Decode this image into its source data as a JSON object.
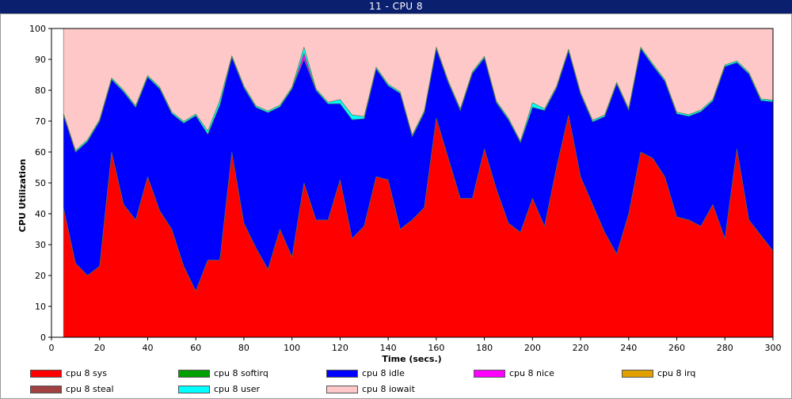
{
  "window": {
    "title": "11 - CPU 8"
  },
  "chart_data": {
    "type": "area",
    "stacked": true,
    "xlabel": "Time (secs.)",
    "ylabel": "CPU Utilization",
    "xlim": [
      0,
      300
    ],
    "ylim": [
      0,
      100
    ],
    "xticks": [
      0,
      20,
      40,
      60,
      80,
      100,
      120,
      140,
      160,
      180,
      200,
      220,
      240,
      260,
      280,
      300
    ],
    "yticks": [
      0,
      10,
      20,
      30,
      40,
      50,
      60,
      70,
      80,
      90,
      100
    ],
    "grid": false,
    "legend_position": "bottom",
    "x": [
      5,
      10,
      15,
      20,
      25,
      30,
      35,
      40,
      45,
      50,
      55,
      60,
      65,
      70,
      75,
      80,
      85,
      90,
      95,
      100,
      105,
      110,
      115,
      120,
      125,
      130,
      135,
      140,
      145,
      150,
      155,
      160,
      165,
      170,
      175,
      180,
      185,
      190,
      195,
      200,
      205,
      210,
      215,
      220,
      225,
      230,
      235,
      240,
      245,
      250,
      255,
      260,
      265,
      270,
      275,
      280,
      285,
      290,
      295,
      300
    ],
    "series": [
      {
        "name": "cpu 8 sys",
        "color": "#ff0000",
        "values": [
          42,
          24,
          20,
          23,
          60,
          43,
          38,
          52,
          41,
          35,
          23,
          15,
          25,
          25,
          60,
          37,
          29,
          22,
          35,
          26,
          50,
          38,
          38,
          51,
          32,
          36,
          52,
          51,
          35,
          38,
          42,
          71,
          58,
          45,
          45,
          61,
          48,
          37,
          34,
          45,
          36,
          55,
          72,
          52,
          43,
          34,
          27,
          40,
          60,
          58,
          52,
          39,
          38,
          36,
          43,
          32,
          61,
          38,
          33,
          28
        ]
      },
      {
        "name": "cpu 8 softirq",
        "color": "#00a000",
        "values": [
          0,
          0,
          0,
          0,
          0,
          0,
          0,
          0,
          0,
          0,
          0,
          0,
          0,
          0,
          0,
          0,
          0,
          0,
          0,
          0,
          0,
          0,
          0,
          0,
          0,
          0,
          0,
          0,
          0,
          0,
          0,
          0,
          0,
          0,
          0,
          0,
          0,
          0,
          0,
          0,
          0,
          0,
          0,
          0,
          0,
          0,
          0,
          0,
          0,
          0,
          0,
          0,
          0,
          0,
          0,
          0,
          0,
          0,
          0,
          0
        ]
      },
      {
        "name": "cpu 8 idle",
        "color": "#0000ff",
        "values": [
          30,
          36,
          43.5,
          47,
          23.5,
          36.5,
          36.5,
          32.3,
          39.5,
          37.5,
          46.4,
          56.8,
          40.8,
          50.3,
          30.7,
          43.9,
          45.5,
          50.8,
          39.7,
          54.5,
          40,
          42,
          37.6,
          24.7,
          38.5,
          34.8,
          35,
          30.5,
          44,
          27,
          30.8,
          22.5,
          24.5,
          28.5,
          40.5,
          29.5,
          28,
          33.5,
          29.1,
          29.5,
          37.5,
          25.8,
          20.8,
          26.8,
          26.8,
          37.5,
          55.1,
          33.6,
          33.5,
          30.1,
          31,
          33.4,
          33.6,
          37.1,
          33.6,
          55.7,
          28,
          47.3,
          43.7,
          48.3
        ]
      },
      {
        "name": "cpu 8 nice",
        "color": "#ff00ff",
        "values": [
          0,
          0,
          0,
          0,
          0,
          0,
          0,
          0,
          0,
          0,
          0,
          0,
          0,
          0,
          0,
          0,
          0,
          0,
          0,
          0,
          2,
          0,
          0,
          0,
          0,
          0,
          0,
          0,
          0,
          0,
          0,
          0,
          0,
          0,
          0,
          0,
          0,
          0,
          0,
          0,
          0,
          0,
          0,
          0,
          0,
          0,
          0,
          0,
          0,
          0,
          0,
          0,
          0,
          0,
          0,
          0,
          0,
          0,
          0,
          0
        ]
      },
      {
        "name": "cpu 8 irq",
        "color": "#e0a000",
        "values": [
          0,
          0,
          0,
          0,
          0,
          0,
          0,
          0,
          0,
          0,
          0,
          0,
          0,
          0,
          0,
          0,
          0,
          0,
          0,
          0,
          0,
          0,
          0,
          0,
          0,
          0,
          0,
          0,
          0,
          0,
          0,
          0,
          0,
          0,
          0,
          0,
          0,
          0,
          0,
          0,
          0,
          0,
          0,
          0,
          0,
          0,
          0,
          0,
          0,
          0,
          0,
          0,
          0,
          0,
          0,
          0,
          0,
          0,
          0,
          0
        ]
      },
      {
        "name": "cpu 8 steal",
        "color": "#a04040",
        "values": [
          0,
          0,
          0,
          0,
          0,
          0,
          0,
          0,
          0,
          0,
          0,
          0,
          0,
          0,
          0,
          0,
          0,
          0,
          0,
          0,
          0,
          0,
          0,
          0,
          0,
          0,
          0,
          0,
          0,
          0,
          0,
          0,
          0,
          0,
          0,
          0,
          0,
          0,
          0,
          0,
          0,
          0,
          0,
          0,
          0,
          0,
          0,
          0,
          0,
          0,
          0,
          0,
          0,
          0,
          0,
          0,
          0,
          0,
          0,
          0
        ]
      },
      {
        "name": "cpu 8 user",
        "color": "#00ffff",
        "values": [
          0.5,
          0.5,
          0.5,
          0.5,
          0.5,
          0.5,
          0.5,
          0.5,
          0.5,
          0.5,
          0.5,
          0.5,
          1,
          1.5,
          0.5,
          0.5,
          0.5,
          0.5,
          0.5,
          0.5,
          2,
          0.5,
          0.5,
          1.3,
          1.5,
          0.7,
          0.5,
          0.5,
          0.5,
          0.5,
          0.5,
          0.5,
          0.5,
          0.5,
          0.5,
          0.5,
          0.5,
          0.5,
          0.5,
          1.5,
          0.5,
          0.5,
          0.5,
          0.5,
          0.5,
          0.5,
          0.5,
          0.5,
          0.5,
          0.5,
          0.5,
          0.5,
          0.5,
          0.5,
          0.5,
          0.5,
          0.5,
          0.5,
          0.5,
          0.5
        ]
      },
      {
        "name": "cpu 8 iowait",
        "color": "#ffc8c8",
        "values": [
          27.5,
          39.5,
          36,
          29.5,
          16,
          20,
          25,
          15.2,
          19,
          27,
          30.1,
          27.7,
          33.2,
          23.2,
          8.8,
          18.6,
          25,
          26.7,
          24.8,
          19,
          6,
          19.5,
          23.9,
          23,
          28,
          28.5,
          12.5,
          18,
          20.5,
          34.5,
          26.7,
          6,
          17,
          26,
          14,
          9,
          23.5,
          29,
          36.4,
          24,
          26,
          18.7,
          6.7,
          20.7,
          29.7,
          28,
          17.4,
          25.9,
          6,
          11.4,
          16.5,
          27.1,
          27.9,
          26.4,
          22.9,
          11.8,
          10.5,
          14.2,
          22.8,
          23.2
        ]
      }
    ]
  }
}
